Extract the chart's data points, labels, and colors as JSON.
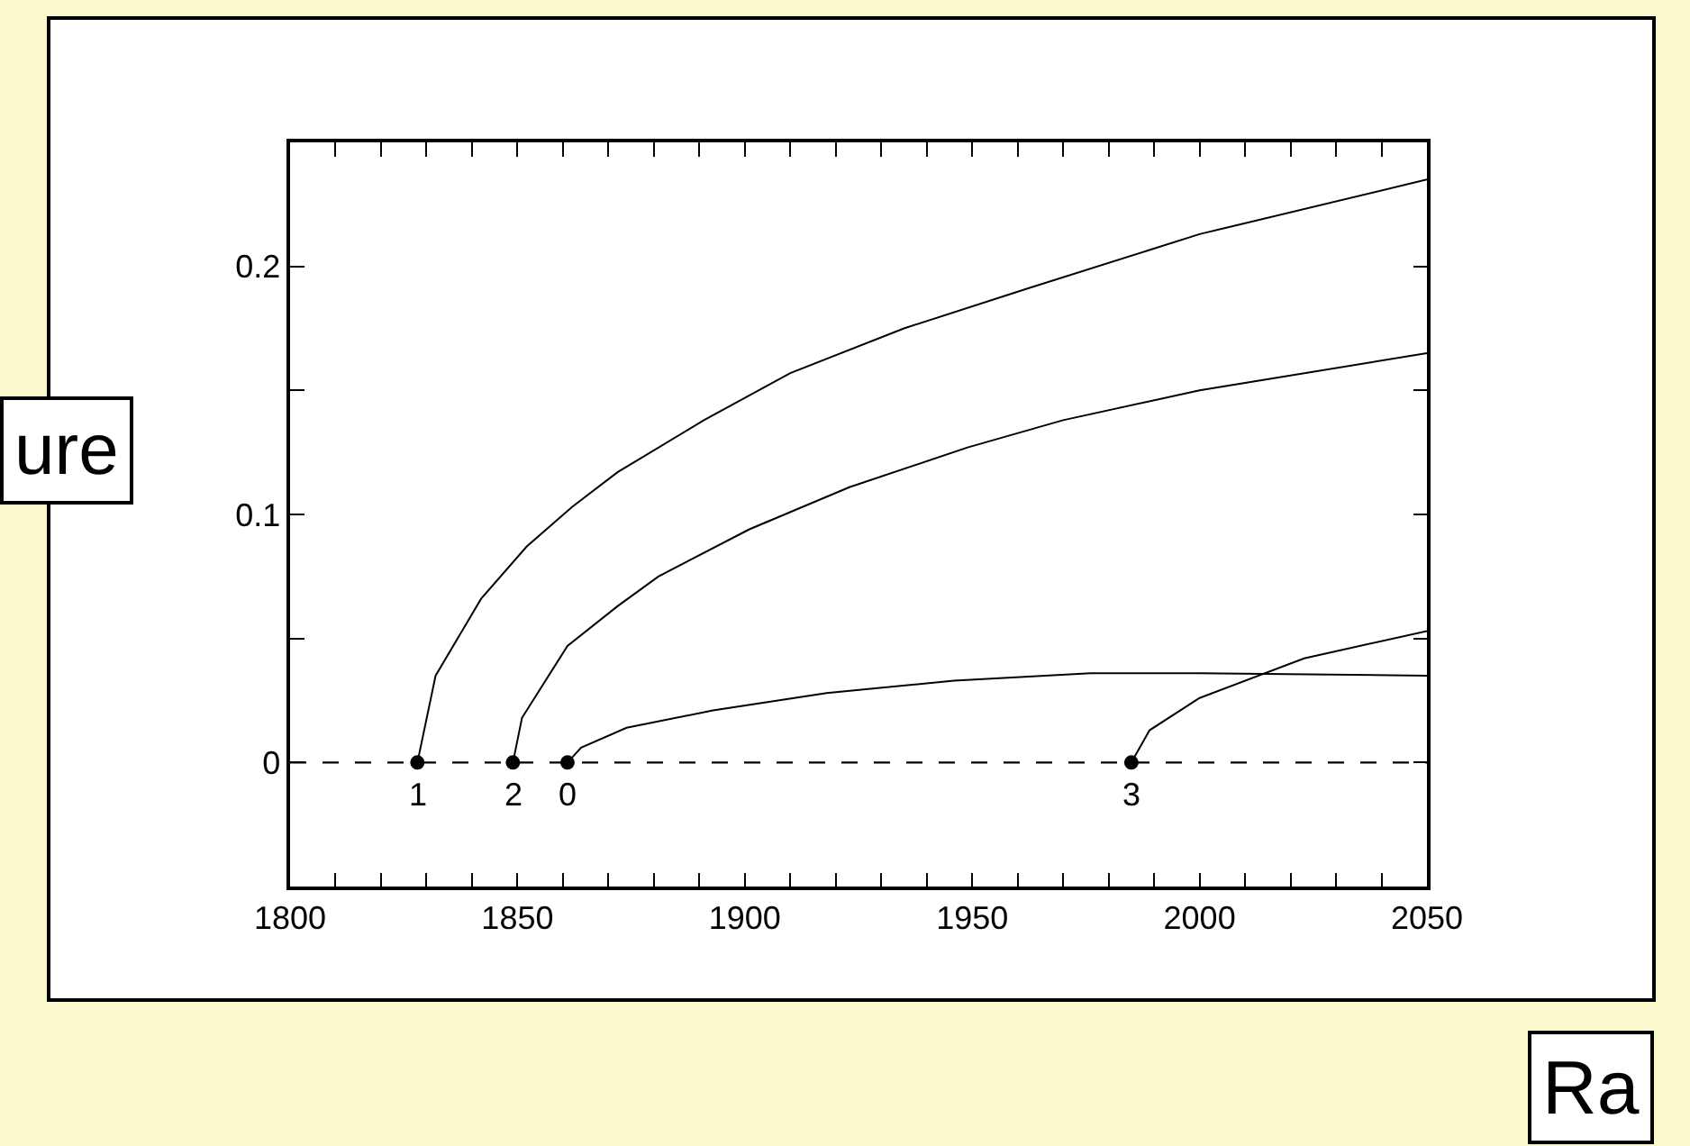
{
  "chart_data": {
    "type": "line",
    "xlim": [
      1800,
      2050
    ],
    "ylim": [
      -0.05,
      0.25
    ],
    "xticks": [
      1800,
      {
        "value": 1810,
        "label": null
      },
      {
        "value": 1820,
        "label": null
      },
      {
        "value": 1830,
        "label": null
      },
      {
        "value": 1840,
        "label": null
      },
      1850,
      {
        "value": 1860,
        "label": null
      },
      {
        "value": 1870,
        "label": null
      },
      {
        "value": 1880,
        "label": null
      },
      {
        "value": 1890,
        "label": null
      },
      1900,
      {
        "value": 1910,
        "label": null
      },
      {
        "value": 1920,
        "label": null
      },
      {
        "value": 1930,
        "label": null
      },
      {
        "value": 1940,
        "label": null
      },
      1950,
      {
        "value": 1960,
        "label": null
      },
      {
        "value": 1970,
        "label": null
      },
      {
        "value": 1980,
        "label": null
      },
      {
        "value": 1990,
        "label": null
      },
      2000,
      {
        "value": 2010,
        "label": null
      },
      {
        "value": 2020,
        "label": null
      },
      {
        "value": 2030,
        "label": null
      },
      {
        "value": 2040,
        "label": null
      },
      2050
    ],
    "yticks": [
      0,
      {
        "value": 0.05,
        "label": null
      },
      0.1,
      {
        "value": 0.15,
        "label": null
      },
      0.2
    ],
    "line_style": "solid",
    "marker": "none",
    "series": [
      {
        "color": "#000000",
        "x": [
          1828,
          1832,
          1842,
          1852,
          1862,
          1872,
          1891,
          1910,
          1935,
          1962,
          2000,
          2050
        ],
        "values": [
          0,
          0.035,
          0.066,
          0.087,
          0.103,
          0.117,
          0.138,
          0.157,
          0.175,
          0.191,
          0.213,
          0.235
        ]
      },
      {
        "color": "#000000",
        "x": [
          1849,
          1851,
          1861,
          1872,
          1881,
          1901,
          1923,
          1949,
          1970,
          2000,
          2050
        ],
        "values": [
          0,
          0.018,
          0.047,
          0.063,
          0.075,
          0.094,
          0.111,
          0.127,
          0.138,
          0.15,
          0.165
        ]
      },
      {
        "color": "#000000",
        "x": [
          1861,
          1864,
          1874,
          1893,
          1918,
          1946,
          1976,
          2000,
          2050
        ],
        "values": [
          0,
          0.006,
          0.014,
          0.021,
          0.028,
          0.033,
          0.036,
          0.036,
          0.035
        ]
      },
      {
        "color": "#000000",
        "x": [
          1985,
          1989,
          2000,
          2023,
          2050
        ],
        "values": [
          0,
          0.013,
          0.026,
          0.042,
          0.053
        ]
      },
      {
        "type": "scatter",
        "marker": "circle",
        "color": "#000000",
        "x": [
          1828,
          1849,
          1861,
          1985
        ],
        "values": [
          0,
          0,
          0,
          0
        ]
      }
    ],
    "ref_lines": [
      {
        "axis": "y",
        "value": 0,
        "line_style": "dashed",
        "color": "#000000"
      }
    ],
    "annotations": [
      {
        "text": "1",
        "x": 1828,
        "y": 0
      },
      {
        "text": "2",
        "x": 1849,
        "y": 0
      },
      {
        "text": "0",
        "x": 1861,
        "y": 0
      },
      {
        "text": "3",
        "x": 1985,
        "y": 0
      },
      "ure",
      "Ra"
    ]
  }
}
